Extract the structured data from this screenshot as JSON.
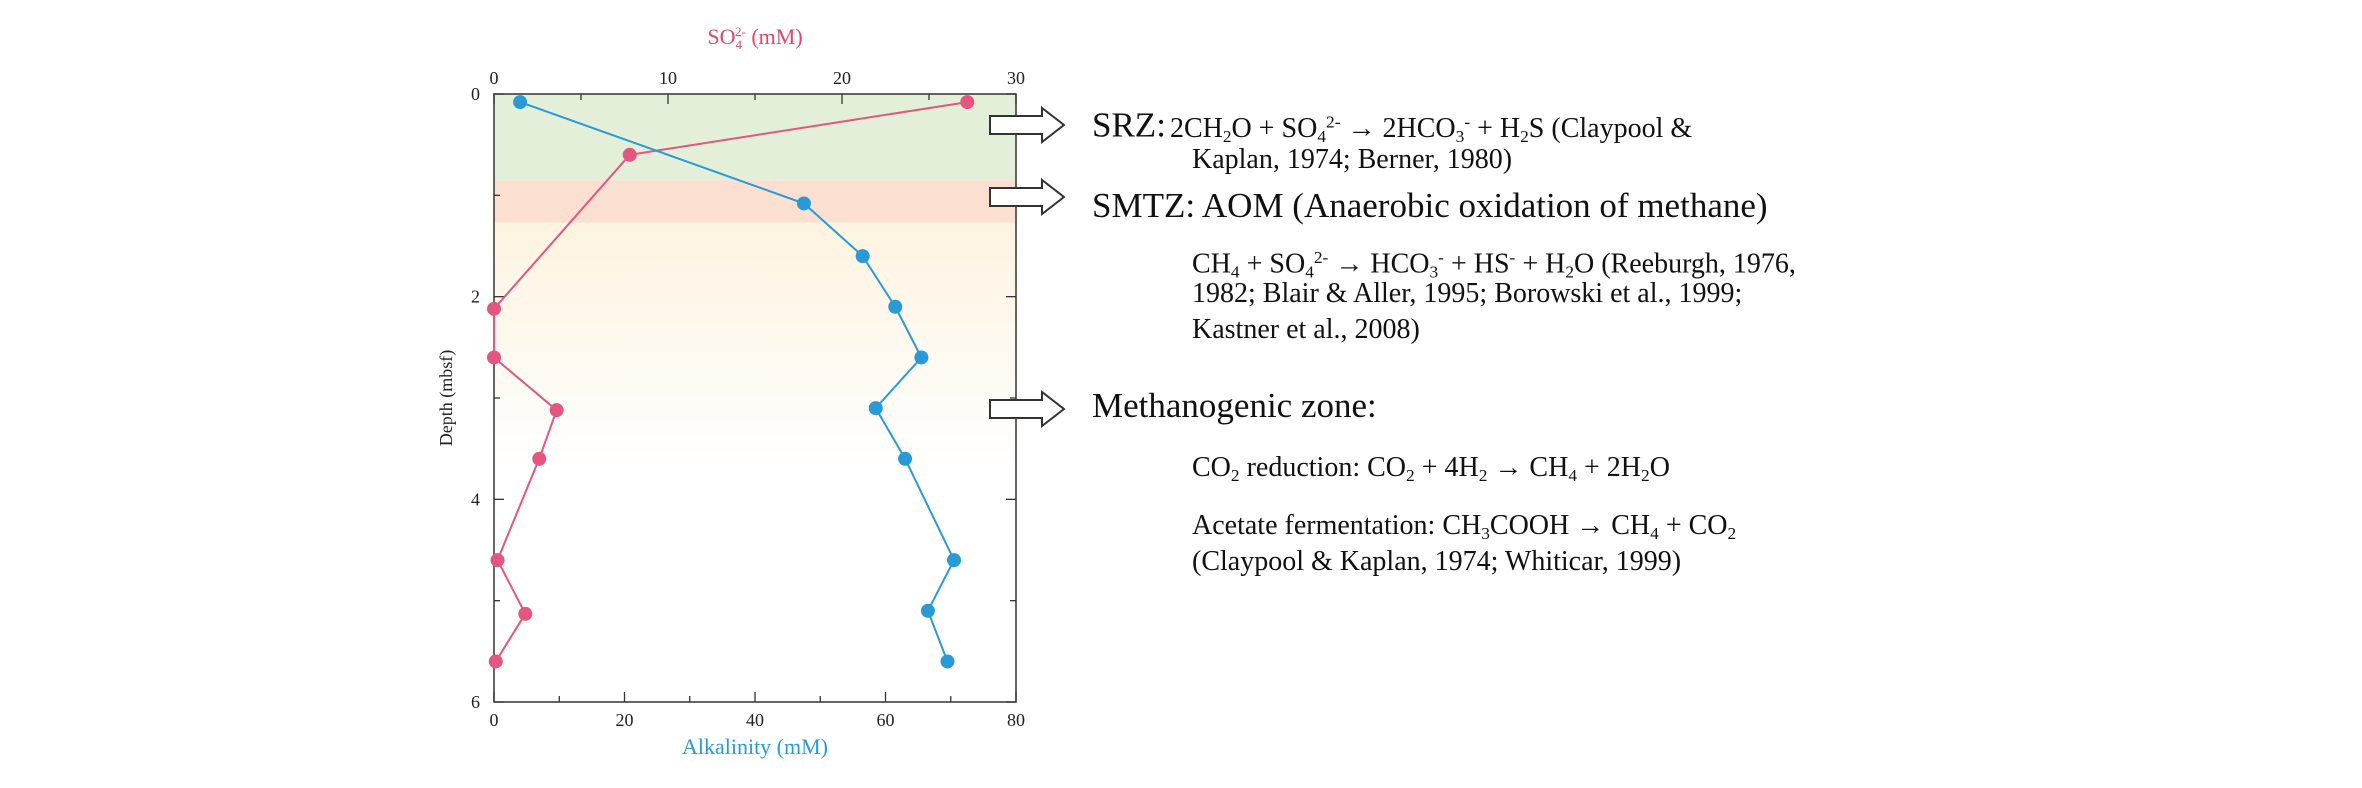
{
  "chart_data": {
    "type": "line",
    "title": "",
    "top_axis": {
      "label": "SO4 2- (mM)",
      "label_base": "SO",
      "label_sub": "4",
      "label_sup": "2-",
      "label_unit": " (mM)",
      "range": [
        0,
        30
      ],
      "ticks": [
        "0",
        "10",
        "20",
        "30"
      ],
      "color": "#e0476b"
    },
    "bottom_axis": {
      "label": "Alkalinity (mM)",
      "range": [
        0,
        80
      ],
      "ticks": [
        "0",
        "20",
        "40",
        "60",
        "80"
      ],
      "color": "#2a9ad6"
    },
    "y_axis": {
      "label": "Depth (mbsf)",
      "range": [
        0,
        6
      ],
      "inverted": true,
      "ticks": [
        "0",
        "2",
        "4",
        "6"
      ]
    },
    "grid": false,
    "zones": [
      {
        "name": "SRZ",
        "depth_range": [
          0,
          0.85
        ],
        "color": "#e3efd9"
      },
      {
        "name": "SMTZ",
        "depth_range": [
          0.85,
          1.27
        ],
        "color": "#fbe0d2"
      },
      {
        "name": "Methanogenic",
        "depth_range": [
          1.27,
          3.3
        ],
        "color": "#fdf3e0"
      }
    ],
    "series": [
      {
        "name": "Sulfate",
        "axis": "top",
        "color": "#e2567f",
        "depth": [
          0.08,
          0.6,
          2.12,
          2.6,
          3.12,
          3.6,
          4.6,
          5.13,
          5.6
        ],
        "values": [
          27.2,
          7.8,
          0.0,
          0.0,
          3.6,
          2.6,
          0.2,
          1.8,
          0.1
        ]
      },
      {
        "name": "Alkalinity",
        "axis": "bottom",
        "color": "#2a9ad6",
        "depth": [
          0.08,
          1.08,
          1.6,
          2.1,
          2.6,
          3.1,
          3.6,
          4.6,
          5.1,
          5.6
        ],
        "values": [
          4.0,
          47.5,
          56.5,
          61.5,
          65.5,
          58.5,
          63.0,
          70.5,
          66.5,
          69.5
        ]
      }
    ]
  },
  "annotations": {
    "srz": {
      "label": "SRZ",
      "colon": ":",
      "eq_parts": [
        "2CH",
        "2",
        "O + SO",
        "4",
        "2-",
        " → 2HCO",
        "3",
        "-",
        " + H",
        "2",
        "S (Claypool &"
      ],
      "cite_line2": "Kaplan, 1974; Berner, 1980)"
    },
    "smtz": {
      "title": "SMTZ: AOM (Anaerobic oxidation of methane)",
      "eq_parts": [
        "CH",
        "4",
        " + SO",
        "4",
        "2-",
        " → HCO",
        "3",
        "-",
        " + HS",
        "-",
        " + H",
        "2",
        "O (Reeburgh, 1976,"
      ],
      "cite_line2": "1982; Blair & Aller, 1995; Borowski et al., 1999;",
      "cite_line3": "Kastner et al., 2008)"
    },
    "methanogenic": {
      "title": "Methanogenic zone:",
      "co2_parts": [
        "CO",
        "2",
        " reduction: CO",
        "2",
        " + 4H",
        "2",
        " → CH",
        "4",
        " + 2H",
        "2",
        "O"
      ],
      "acetate_parts": [
        "Acetate fermentation: CH",
        "3",
        "COOH → CH",
        "4",
        " + CO",
        "2"
      ],
      "cite": "(Claypool & Kaplan, 1974; Whiticar, 1999)"
    }
  }
}
